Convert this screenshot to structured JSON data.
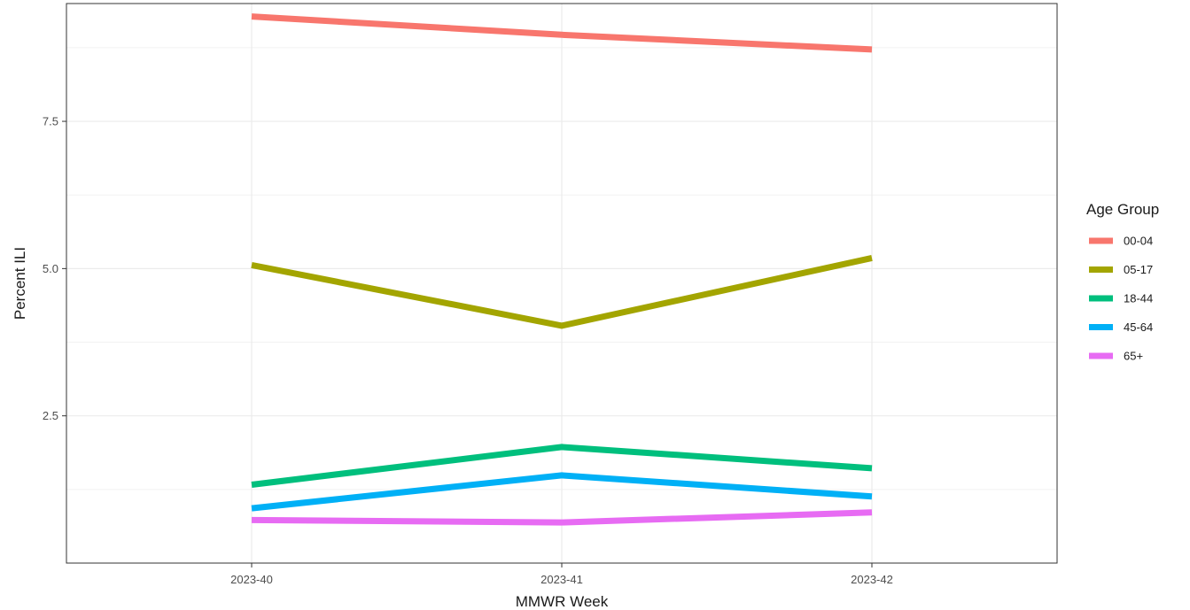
{
  "chart_data": {
    "type": "line",
    "xlabel": "MMWR Week",
    "ylabel": "Percent ILI",
    "categories": [
      "2023-40",
      "2023-41",
      "2023-42"
    ],
    "yticks": [
      2.5,
      5.0,
      7.5
    ],
    "ytick_labels": [
      "2.5",
      "5.0",
      "7.5"
    ],
    "ylim": [
      0.0,
      9.5
    ],
    "grid": true,
    "legend": {
      "title": "Age Group",
      "position": "right"
    },
    "series": [
      {
        "name": "00-04",
        "color": "#F8766D",
        "values": [
          9.28,
          8.97,
          8.72
        ]
      },
      {
        "name": "05-17",
        "color": "#A3A500",
        "values": [
          5.06,
          4.03,
          5.18
        ]
      },
      {
        "name": "18-44",
        "color": "#00BF7D",
        "values": [
          1.33,
          1.97,
          1.61
        ]
      },
      {
        "name": "45-64",
        "color": "#00B0F6",
        "values": [
          0.93,
          1.49,
          1.13
        ]
      },
      {
        "name": "65+",
        "color": "#E76BF3",
        "values": [
          0.73,
          0.69,
          0.86
        ]
      }
    ]
  }
}
